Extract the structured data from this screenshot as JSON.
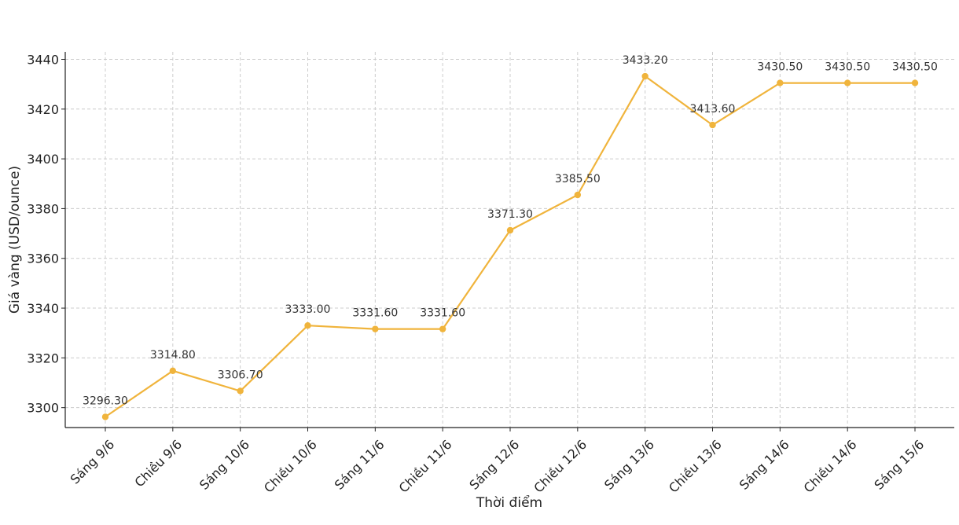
{
  "chart_data": {
    "type": "line",
    "title": "",
    "xlabel": "Thời điểm",
    "ylabel": "Giá vàng (USD/ounce)",
    "categories": [
      "Sáng 9/6",
      "Chiều 9/6",
      "Sáng 10/6",
      "Chiều 10/6",
      "Sáng 11/6",
      "Chiều 11/6",
      "Sáng 12/6",
      "Chiều 12/6",
      "Sáng 13/6",
      "Chiều 13/6",
      "Sáng 14/6",
      "Chiều 14/6",
      "Sáng 15/6"
    ],
    "values": [
      3296.3,
      3314.8,
      3306.7,
      3333.0,
      3331.6,
      3331.6,
      3371.3,
      3385.5,
      3433.2,
      3413.6,
      3430.5,
      3430.5,
      3430.5
    ],
    "value_labels": [
      "3296.30",
      "3314.80",
      "3306.70",
      "3333.00",
      "3331.60",
      "3331.60",
      "3371.30",
      "3385.50",
      "3433.20",
      "3413.60",
      "3430.50",
      "3430.50",
      "3430.50"
    ],
    "yticks": [
      3300,
      3320,
      3340,
      3360,
      3380,
      3400,
      3420,
      3440
    ],
    "ylim": [
      3292,
      3443
    ],
    "grid": true,
    "line_color": "#f0b43c"
  }
}
